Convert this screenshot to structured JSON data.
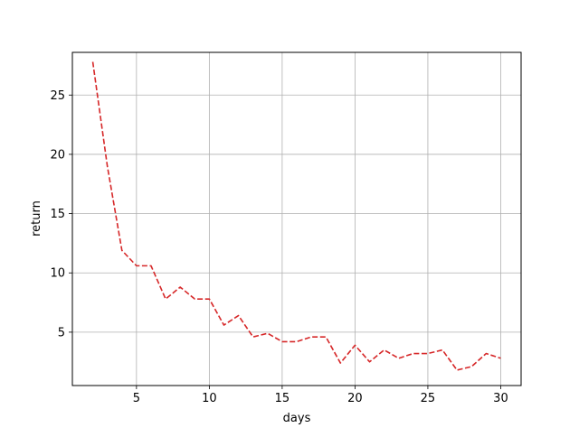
{
  "chart_data": {
    "type": "line",
    "title": "",
    "xlabel": "days",
    "ylabel": "return",
    "xlim": [
      0.6,
      31.4
    ],
    "ylim": [
      0.5,
      28.6
    ],
    "xticks": [
      5,
      10,
      15,
      20,
      25,
      30
    ],
    "yticks": [
      5,
      10,
      15,
      20,
      25
    ],
    "grid": true,
    "legend": "none",
    "series": [
      {
        "line_style": "dashed",
        "color": "#d62728",
        "x": [
          2,
          3,
          4,
          5,
          6,
          7,
          8,
          9,
          10,
          11,
          12,
          13,
          14,
          15,
          16,
          17,
          18,
          19,
          20,
          21,
          22,
          23,
          24,
          25,
          26,
          27,
          28,
          29,
          30
        ],
        "y": [
          27.8,
          19.0,
          11.9,
          10.6,
          10.6,
          7.8,
          8.8,
          7.8,
          7.8,
          5.6,
          6.4,
          4.6,
          4.9,
          4.2,
          4.2,
          4.6,
          4.6,
          2.4,
          3.9,
          2.5,
          3.5,
          2.8,
          3.2,
          3.2,
          3.5,
          1.8,
          2.1,
          3.2,
          2.8
        ]
      }
    ]
  }
}
